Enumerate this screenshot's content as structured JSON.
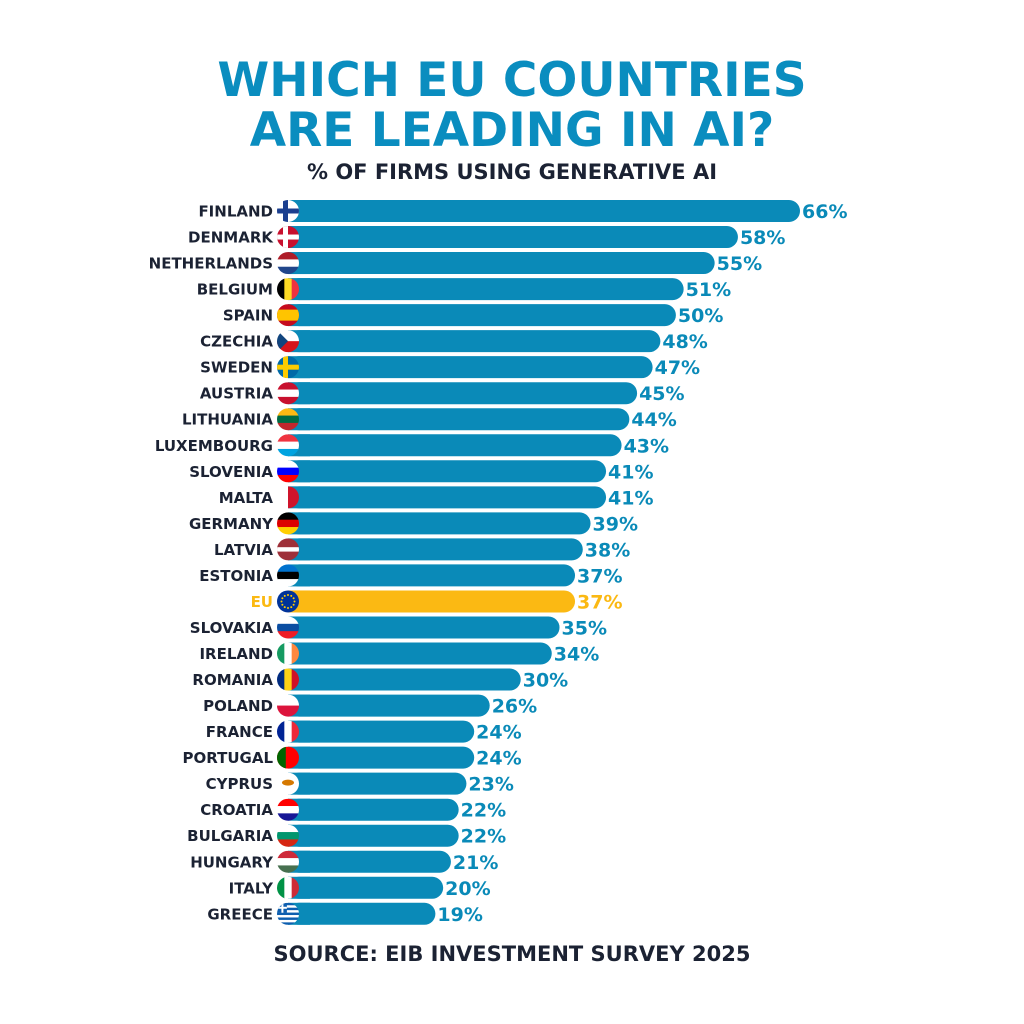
{
  "chart_data": {
    "type": "bar",
    "orientation": "horizontal",
    "title": "WHICH EU COUNTRIES ARE LEADING IN AI?",
    "title_lines": [
      "WHICH EU COUNTRIES",
      "ARE LEADING IN AI?"
    ],
    "subtitle": "% OF FIRMS USING GENERATIVE AI",
    "source": "SOURCE: EIB INVESTMENT SURVEY 2025",
    "unit": "%",
    "xlim": [
      0,
      66
    ],
    "grid": false,
    "colors": {
      "bar": "#0a8ab8",
      "highlight": "#fbb913",
      "label": "#1b2233",
      "title": "#0a8dbf"
    },
    "highlight": "EU",
    "categories": [
      "FINLAND",
      "DENMARK",
      "NETHERLANDS",
      "BELGIUM",
      "SPAIN",
      "CZECHIA",
      "SWEDEN",
      "AUSTRIA",
      "LITHUANIA",
      "LUXEMBOURG",
      "SLOVENIA",
      "MALTA",
      "GERMANY",
      "LATVIA",
      "ESTONIA",
      "EU",
      "SLOVAKIA",
      "IRELAND",
      "ROMANIA",
      "POLAND",
      "FRANCE",
      "PORTUGAL",
      "CYPRUS",
      "CROATIA",
      "BULGARIA",
      "HUNGARY",
      "ITALY",
      "GREECE"
    ],
    "values": [
      66,
      58,
      55,
      51,
      50,
      48,
      47,
      45,
      44,
      43,
      41,
      41,
      39,
      38,
      37,
      37,
      35,
      34,
      30,
      26,
      24,
      24,
      23,
      22,
      22,
      21,
      20,
      19
    ],
    "value_labels": [
      "66%",
      "58%",
      "55%",
      "51%",
      "50%",
      "48%",
      "47%",
      "45%",
      "44%",
      "43%",
      "41%",
      "41%",
      "39%",
      "38%",
      "37%",
      "37%",
      "35%",
      "34%",
      "30%",
      "26%",
      "24%",
      "24%",
      "23%",
      "22%",
      "22%",
      "21%",
      "20%",
      "19%"
    ],
    "flags": [
      {
        "type": "cross",
        "colors": [
          "#ffffff",
          "#1b3f8f"
        ]
      },
      {
        "type": "cross",
        "colors": [
          "#c8102e",
          "#ffffff"
        ]
      },
      {
        "type": "h",
        "colors": [
          "#ae1c28",
          "#ffffff",
          "#21468b"
        ]
      },
      {
        "type": "v",
        "colors": [
          "#000000",
          "#fdda24",
          "#ef3340"
        ]
      },
      {
        "type": "h3",
        "colors": [
          "#c60b1e",
          "#ffc400",
          "#c60b1e"
        ]
      },
      {
        "type": "h",
        "colors": [
          "#ffffff",
          "#d7141a"
        ],
        "tri": "#11457e"
      },
      {
        "type": "cross",
        "colors": [
          "#006aa7",
          "#fecc00"
        ]
      },
      {
        "type": "h",
        "colors": [
          "#c8102e",
          "#ffffff",
          "#c8102e"
        ]
      },
      {
        "type": "h",
        "colors": [
          "#fdb913",
          "#006a44",
          "#c1272d"
        ]
      },
      {
        "type": "h",
        "colors": [
          "#ef3340",
          "#ffffff",
          "#00a3e0"
        ]
      },
      {
        "type": "h",
        "colors": [
          "#ffffff",
          "#0000ff",
          "#ff0000"
        ]
      },
      {
        "type": "v",
        "colors": [
          "#ffffff",
          "#cf142b"
        ]
      },
      {
        "type": "h",
        "colors": [
          "#000000",
          "#dd0000",
          "#ffce00"
        ]
      },
      {
        "type": "h3l",
        "colors": [
          "#9e3039",
          "#ffffff",
          "#9e3039"
        ]
      },
      {
        "type": "h",
        "colors": [
          "#0072ce",
          "#000000",
          "#ffffff"
        ]
      },
      {
        "type": "eu",
        "colors": [
          "#003399",
          "#ffcc00"
        ]
      },
      {
        "type": "h",
        "colors": [
          "#ffffff",
          "#0b4ea2",
          "#ee1c25"
        ]
      },
      {
        "type": "v",
        "colors": [
          "#169b62",
          "#ffffff",
          "#ff883e"
        ]
      },
      {
        "type": "v",
        "colors": [
          "#002b7f",
          "#fcd116",
          "#ce1126"
        ]
      },
      {
        "type": "h",
        "colors": [
          "#ffffff",
          "#dc143c"
        ]
      },
      {
        "type": "v",
        "colors": [
          "#002395",
          "#ffffff",
          "#ed2939"
        ]
      },
      {
        "type": "v2",
        "colors": [
          "#006600",
          "#ff0000"
        ]
      },
      {
        "type": "solid",
        "colors": [
          "#ffffff",
          "#d57800"
        ]
      },
      {
        "type": "h",
        "colors": [
          "#ff0000",
          "#ffffff",
          "#171796"
        ]
      },
      {
        "type": "h",
        "colors": [
          "#ffffff",
          "#00966e",
          "#d62612"
        ]
      },
      {
        "type": "h",
        "colors": [
          "#ce2939",
          "#ffffff",
          "#477050"
        ]
      },
      {
        "type": "v",
        "colors": [
          "#009246",
          "#ffffff",
          "#ce2b37"
        ]
      },
      {
        "type": "greece",
        "colors": [
          "#0d5eaf",
          "#ffffff"
        ]
      }
    ]
  }
}
